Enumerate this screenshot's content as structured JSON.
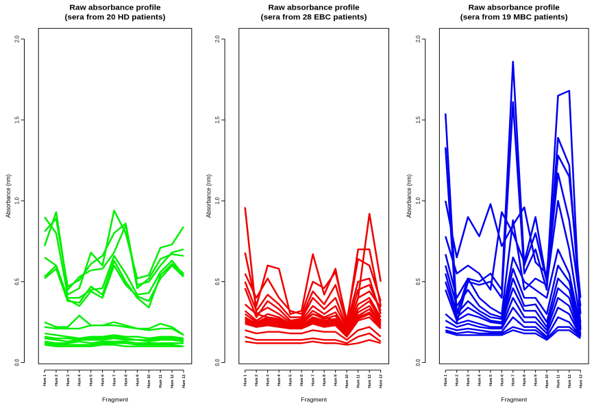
{
  "chart_data": [
    {
      "type": "line",
      "title": "Raw absorbance profile",
      "subtitle": "(sera from 20 HD patients)",
      "xlabel": "Fragment",
      "ylabel": "Absorbance (nm)",
      "ylim": [
        0,
        2.0
      ],
      "yticks": [
        "0.0",
        "0.5",
        "1.0",
        "1.5",
        "2.0"
      ],
      "categories": [
        "Hum 1",
        "Hum 2",
        "Hum 3",
        "Hum 4",
        "Hum 5",
        "Hum 6",
        "Hum 7",
        "Hum 8",
        "Hum 9",
        "Hum 10",
        "Hum 11",
        "Hum 12",
        "Hum 13"
      ],
      "color": "#00ee00",
      "series": [
        {
          "values": [
            0.9,
            0.8,
            0.42,
            0.46,
            0.68,
            0.6,
            0.94,
            0.8,
            0.52,
            0.54,
            0.71,
            0.73,
            0.84
          ]
        },
        {
          "values": [
            0.81,
            0.89,
            0.47,
            0.51,
            0.61,
            0.66,
            0.8,
            0.86,
            0.48,
            0.5,
            0.6,
            0.68,
            0.7
          ]
        },
        {
          "values": [
            0.72,
            0.93,
            0.45,
            0.53,
            0.57,
            0.58,
            0.68,
            0.85,
            0.46,
            0.52,
            0.64,
            0.67,
            0.66
          ]
        },
        {
          "values": [
            0.65,
            0.6,
            0.4,
            0.4,
            0.45,
            0.46,
            0.66,
            0.55,
            0.42,
            0.43,
            0.56,
            0.63,
            0.54
          ]
        },
        {
          "values": [
            0.52,
            0.58,
            0.38,
            0.37,
            0.47,
            0.42,
            0.63,
            0.5,
            0.4,
            0.34,
            0.54,
            0.61,
            0.55
          ]
        },
        {
          "values": [
            0.53,
            0.6,
            0.39,
            0.35,
            0.44,
            0.4,
            0.6,
            0.48,
            0.41,
            0.38,
            0.52,
            0.6,
            0.53
          ]
        },
        {
          "values": [
            0.25,
            0.22,
            0.22,
            0.29,
            0.23,
            0.23,
            0.25,
            0.23,
            0.21,
            0.21,
            0.24,
            0.22,
            0.17
          ]
        },
        {
          "values": [
            0.22,
            0.21,
            0.21,
            0.21,
            0.23,
            0.23,
            0.23,
            0.22,
            0.21,
            0.2,
            0.21,
            0.21,
            0.17
          ]
        },
        {
          "values": [
            0.18,
            0.17,
            0.16,
            0.15,
            0.16,
            0.16,
            0.17,
            0.16,
            0.16,
            0.15,
            0.16,
            0.16,
            0.15
          ]
        },
        {
          "values": [
            0.16,
            0.15,
            0.15,
            0.14,
            0.15,
            0.15,
            0.16,
            0.15,
            0.14,
            0.14,
            0.15,
            0.15,
            0.14
          ]
        },
        {
          "values": [
            0.15,
            0.14,
            0.13,
            0.14,
            0.14,
            0.14,
            0.15,
            0.14,
            0.14,
            0.13,
            0.14,
            0.14,
            0.13
          ]
        },
        {
          "values": [
            0.13,
            0.12,
            0.12,
            0.13,
            0.12,
            0.13,
            0.13,
            0.13,
            0.12,
            0.12,
            0.12,
            0.12,
            0.12
          ]
        },
        {
          "values": [
            0.12,
            0.11,
            0.11,
            0.11,
            0.11,
            0.12,
            0.12,
            0.12,
            0.11,
            0.11,
            0.11,
            0.11,
            0.1
          ]
        },
        {
          "values": [
            0.11,
            0.1,
            0.1,
            0.1,
            0.1,
            0.11,
            0.11,
            0.1,
            0.1,
            0.1,
            0.1,
            0.1,
            0.1
          ]
        }
      ]
    },
    {
      "type": "line",
      "title": "Raw absorbance profile",
      "subtitle": "(sera from 28 EBC patients)",
      "xlabel": "Fragment",
      "ylabel": "Absorbance (nm)",
      "ylim": [
        0,
        2.0
      ],
      "yticks": [
        "0.0",
        "0.5",
        "1.0",
        "1.5",
        "2.0"
      ],
      "categories": [
        "Hum 1",
        "Hum 2",
        "Hum 3",
        "Hum 4",
        "Hum 5",
        "Hum 6",
        "Hum 7",
        "Hum 8",
        "Hum 9",
        "Hum 10",
        "Hum 11",
        "Hum 12",
        "Hum 13"
      ],
      "color": "#ee0000",
      "series": [
        {
          "values": [
            0.96,
            0.3,
            0.28,
            0.26,
            0.24,
            0.25,
            0.3,
            0.28,
            0.26,
            0.2,
            0.4,
            0.92,
            0.5
          ]
        },
        {
          "values": [
            0.68,
            0.35,
            0.6,
            0.58,
            0.3,
            0.32,
            0.67,
            0.42,
            0.58,
            0.24,
            0.7,
            0.7,
            0.35
          ]
        },
        {
          "values": [
            0.55,
            0.4,
            0.52,
            0.4,
            0.32,
            0.3,
            0.5,
            0.46,
            0.56,
            0.26,
            0.64,
            0.6,
            0.38
          ]
        },
        {
          "values": [
            0.5,
            0.32,
            0.42,
            0.36,
            0.28,
            0.28,
            0.44,
            0.36,
            0.48,
            0.24,
            0.5,
            0.52,
            0.3
          ]
        },
        {
          "values": [
            0.46,
            0.28,
            0.38,
            0.33,
            0.26,
            0.27,
            0.4,
            0.33,
            0.4,
            0.22,
            0.45,
            0.48,
            0.32
          ]
        },
        {
          "values": [
            0.36,
            0.3,
            0.34,
            0.3,
            0.25,
            0.26,
            0.35,
            0.3,
            0.35,
            0.21,
            0.4,
            0.44,
            0.34
          ]
        },
        {
          "values": [
            0.32,
            0.26,
            0.3,
            0.28,
            0.24,
            0.25,
            0.32,
            0.28,
            0.31,
            0.2,
            0.36,
            0.4,
            0.28
          ]
        },
        {
          "values": [
            0.3,
            0.25,
            0.28,
            0.27,
            0.23,
            0.24,
            0.3,
            0.27,
            0.29,
            0.19,
            0.33,
            0.38,
            0.26
          ]
        },
        {
          "values": [
            0.28,
            0.24,
            0.27,
            0.26,
            0.23,
            0.23,
            0.28,
            0.26,
            0.27,
            0.18,
            0.31,
            0.35,
            0.25
          ]
        },
        {
          "values": [
            0.27,
            0.24,
            0.26,
            0.25,
            0.22,
            0.23,
            0.27,
            0.25,
            0.26,
            0.18,
            0.29,
            0.33,
            0.24
          ]
        },
        {
          "values": [
            0.26,
            0.23,
            0.25,
            0.24,
            0.22,
            0.22,
            0.26,
            0.24,
            0.25,
            0.17,
            0.28,
            0.31,
            0.23
          ]
        },
        {
          "values": [
            0.25,
            0.22,
            0.24,
            0.23,
            0.21,
            0.22,
            0.25,
            0.23,
            0.24,
            0.17,
            0.27,
            0.3,
            0.22
          ]
        },
        {
          "values": [
            0.24,
            0.22,
            0.23,
            0.22,
            0.21,
            0.21,
            0.24,
            0.22,
            0.23,
            0.16,
            0.26,
            0.28,
            0.21
          ]
        },
        {
          "values": [
            0.2,
            0.18,
            0.19,
            0.19,
            0.18,
            0.18,
            0.2,
            0.19,
            0.19,
            0.14,
            0.2,
            0.22,
            0.16
          ]
        },
        {
          "values": [
            0.16,
            0.14,
            0.14,
            0.14,
            0.14,
            0.14,
            0.15,
            0.14,
            0.14,
            0.12,
            0.16,
            0.18,
            0.13
          ]
        },
        {
          "values": [
            0.13,
            0.12,
            0.12,
            0.12,
            0.12,
            0.12,
            0.13,
            0.12,
            0.12,
            0.11,
            0.12,
            0.14,
            0.12
          ]
        }
      ]
    },
    {
      "type": "line",
      "title": "Raw absorbance profile",
      "subtitle": "(sera from 19 MBC patients)",
      "xlabel": "Fragment",
      "ylabel": "Absorbance (nm)",
      "ylim": [
        0,
        2.0
      ],
      "yticks": [
        "0.0",
        "0.5",
        "1.0",
        "1.5",
        "2.0"
      ],
      "categories": [
        "Hum 1",
        "Hum 2",
        "Hum 3",
        "Hum 4",
        "Hum 5",
        "Hum 6",
        "Hum 7",
        "Hum 8",
        "Hum 9",
        "Hum 10",
        "Hum 11",
        "Hum 12",
        "Hum 13"
      ],
      "color": "#0000ee",
      "series": [
        {
          "values": [
            1.54,
            0.3,
            0.52,
            0.5,
            0.55,
            0.45,
            1.86,
            0.6,
            0.8,
            0.5,
            1.65,
            1.68,
            0.2
          ]
        },
        {
          "values": [
            1.33,
            0.25,
            0.5,
            0.48,
            0.5,
            0.4,
            1.61,
            0.55,
            0.7,
            0.45,
            1.39,
            1.22,
            0.3
          ]
        },
        {
          "values": [
            1.0,
            0.65,
            0.9,
            0.78,
            0.98,
            0.72,
            0.85,
            0.96,
            0.62,
            0.55,
            1.28,
            1.15,
            0.4
          ]
        },
        {
          "values": [
            0.78,
            0.55,
            0.6,
            0.55,
            0.45,
            0.93,
            0.8,
            0.62,
            0.9,
            0.5,
            1.17,
            0.88,
            0.35
          ]
        },
        {
          "values": [
            0.67,
            0.4,
            0.52,
            0.4,
            0.34,
            0.3,
            0.88,
            0.45,
            0.52,
            0.48,
            1.0,
            0.7,
            0.25
          ]
        },
        {
          "values": [
            0.6,
            0.35,
            0.45,
            0.35,
            0.3,
            0.28,
            0.65,
            0.5,
            0.45,
            0.4,
            0.7,
            0.55,
            0.22
          ]
        },
        {
          "values": [
            0.55,
            0.3,
            0.38,
            0.32,
            0.28,
            0.27,
            0.58,
            0.4,
            0.4,
            0.3,
            0.6,
            0.5,
            0.2
          ]
        },
        {
          "values": [
            0.5,
            0.28,
            0.34,
            0.3,
            0.26,
            0.25,
            0.52,
            0.35,
            0.36,
            0.25,
            0.52,
            0.45,
            0.18
          ]
        },
        {
          "values": [
            0.45,
            0.26,
            0.3,
            0.28,
            0.25,
            0.24,
            0.46,
            0.32,
            0.32,
            0.22,
            0.46,
            0.4,
            0.17
          ]
        },
        {
          "values": [
            0.3,
            0.24,
            0.26,
            0.24,
            0.22,
            0.22,
            0.4,
            0.28,
            0.28,
            0.2,
            0.4,
            0.35,
            0.16
          ]
        },
        {
          "values": [
            0.26,
            0.22,
            0.24,
            0.22,
            0.21,
            0.21,
            0.34,
            0.25,
            0.25,
            0.18,
            0.34,
            0.3,
            0.16
          ]
        },
        {
          "values": [
            0.22,
            0.2,
            0.21,
            0.2,
            0.19,
            0.19,
            0.28,
            0.22,
            0.22,
            0.16,
            0.28,
            0.25,
            0.16
          ]
        },
        {
          "values": [
            0.2,
            0.18,
            0.19,
            0.18,
            0.18,
            0.18,
            0.22,
            0.2,
            0.2,
            0.15,
            0.22,
            0.22,
            0.16
          ]
        },
        {
          "values": [
            0.19,
            0.17,
            0.17,
            0.17,
            0.17,
            0.17,
            0.2,
            0.18,
            0.18,
            0.14,
            0.2,
            0.2,
            0.15
          ]
        }
      ]
    }
  ]
}
